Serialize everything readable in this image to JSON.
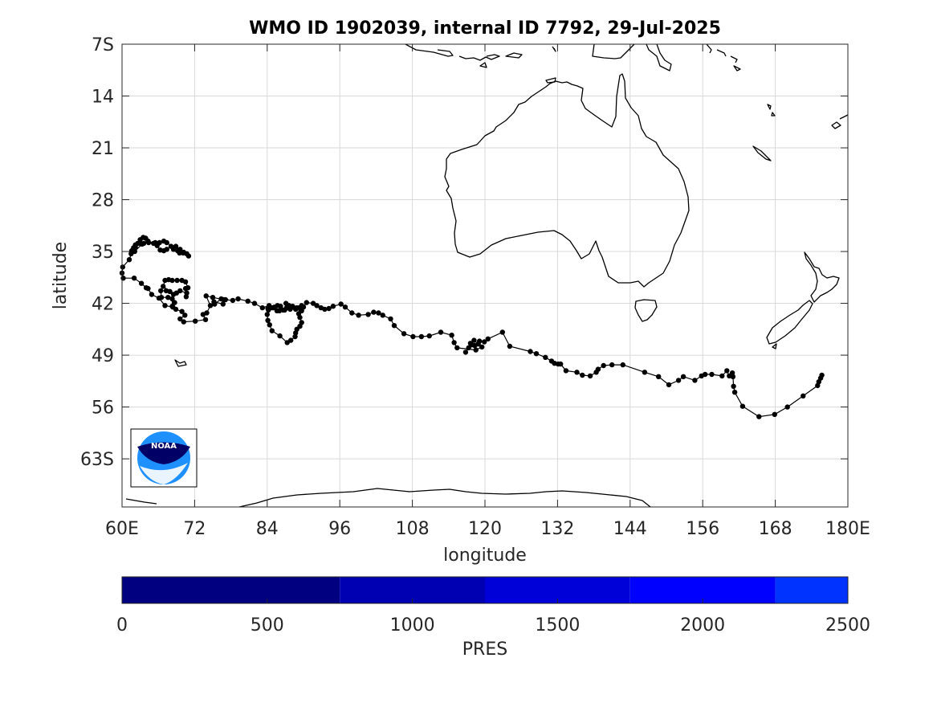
{
  "chart_data": {
    "type": "scatter",
    "title": "WMO ID 1902039, internal ID 7792, 29-Jul-2025",
    "xlabel": "longitude",
    "ylabel": "latitude",
    "xlim": [
      60,
      180
    ],
    "ylim": [
      -69.5,
      -7
    ],
    "x_ticks": [
      60,
      72,
      84,
      96,
      108,
      120,
      132,
      144,
      156,
      168,
      180
    ],
    "x_tick_labels": [
      "60E",
      "72",
      "84",
      "96",
      "108",
      "120",
      "132",
      "144",
      "156",
      "168",
      "180E"
    ],
    "y_ticks": [
      -7,
      -14,
      -21,
      -28,
      -35,
      -42,
      -49,
      -56,
      -63
    ],
    "y_tick_labels": [
      "7S",
      "14",
      "21",
      "28",
      "35",
      "42",
      "49",
      "56",
      "63S"
    ],
    "grid": true,
    "marker_color": "#000000",
    "series": [
      {
        "points": [
          [
            175.7,
            -51.7
          ],
          [
            175.5,
            -52.1
          ],
          [
            175.2,
            -52.6
          ],
          [
            175.0,
            -53.1
          ],
          [
            172.6,
            -54.5
          ],
          [
            170.0,
            -56.0
          ],
          [
            167.9,
            -57.0
          ],
          [
            165.3,
            -57.3
          ],
          [
            162.6,
            -55.9
          ],
          [
            161.3,
            -54.0
          ],
          [
            161.1,
            -53.2
          ],
          [
            161.0,
            -51.9
          ],
          [
            160.9,
            -51.4
          ],
          [
            160.4,
            -51.8
          ],
          [
            160.0,
            -51.1
          ],
          [
            159.2,
            -51.8
          ],
          [
            157.5,
            -51.6
          ],
          [
            156.4,
            -51.6
          ],
          [
            155.8,
            -51.8
          ],
          [
            154.7,
            -52.4
          ],
          [
            152.8,
            -51.9
          ],
          [
            152.0,
            -52.4
          ],
          [
            150.4,
            -53.0
          ],
          [
            148.7,
            -51.9
          ],
          [
            146.4,
            -51.3
          ],
          [
            142.8,
            -50.3
          ],
          [
            141.0,
            -50.3
          ],
          [
            139.6,
            -50.4
          ],
          [
            138.7,
            -50.9
          ],
          [
            138.4,
            -51.3
          ],
          [
            137.4,
            -51.8
          ],
          [
            136.1,
            -51.7
          ],
          [
            135.2,
            -51.3
          ],
          [
            133.4,
            -51.1
          ],
          [
            132.5,
            -50.2
          ],
          [
            132.1,
            -50.2
          ],
          [
            131.5,
            -50.1
          ],
          [
            131.0,
            -49.8
          ],
          [
            130.0,
            -49.3
          ],
          [
            128.5,
            -48.8
          ],
          [
            127.5,
            -48.5
          ],
          [
            124.1,
            -47.8
          ],
          [
            122.9,
            -45.9
          ],
          [
            120.5,
            -46.8
          ],
          [
            119.9,
            -47.2
          ],
          [
            119.1,
            -47.1
          ],
          [
            118.3,
            -47.7
          ],
          [
            117.8,
            -47.6
          ],
          [
            117.3,
            -48.0
          ],
          [
            116.8,
            -48.6
          ],
          [
            117.6,
            -47.4
          ],
          [
            118.2,
            -47.0
          ],
          [
            118.9,
            -47.5
          ],
          [
            119.5,
            -47.9
          ],
          [
            118.5,
            -48.3
          ],
          [
            115.4,
            -48.0
          ],
          [
            114.9,
            -47.3
          ],
          [
            114.5,
            -46.3
          ],
          [
            112.7,
            -45.9
          ],
          [
            110.8,
            -46.4
          ],
          [
            109.5,
            -46.5
          ],
          [
            108.1,
            -46.5
          ],
          [
            106.6,
            -46.1
          ],
          [
            105.0,
            -45.0
          ],
          [
            104.4,
            -44.1
          ],
          [
            103.1,
            -43.6
          ],
          [
            102.4,
            -43.3
          ],
          [
            101.6,
            -43.2
          ],
          [
            100.7,
            -43.5
          ],
          [
            99.1,
            -43.6
          ],
          [
            98.0,
            -43.3
          ],
          [
            96.9,
            -42.5
          ],
          [
            96.2,
            -42.1
          ],
          [
            94.9,
            -42.4
          ],
          [
            94.2,
            -42.7
          ],
          [
            93.5,
            -42.8
          ],
          [
            92.9,
            -42.6
          ],
          [
            92.2,
            -42.3
          ],
          [
            91.6,
            -42.0
          ],
          [
            90.5,
            -41.9
          ],
          [
            90.0,
            -42.5
          ],
          [
            89.5,
            -42.8
          ],
          [
            88.7,
            -42.8
          ],
          [
            87.8,
            -42.8
          ],
          [
            87.2,
            -42.6
          ],
          [
            87.1,
            -42.0
          ],
          [
            87.4,
            -42.6
          ],
          [
            86.6,
            -42.9
          ],
          [
            86.0,
            -43.0
          ],
          [
            85.6,
            -43.0
          ],
          [
            85.2,
            -42.5
          ],
          [
            84.7,
            -42.6
          ],
          [
            84.1,
            -42.7
          ],
          [
            84.3,
            -42.3
          ],
          [
            83.2,
            -42.6
          ],
          [
            81.9,
            -42.0
          ],
          [
            80.8,
            -41.7
          ],
          [
            79.2,
            -41.4
          ],
          [
            78.3,
            -41.6
          ],
          [
            77.1,
            -41.5
          ],
          [
            76.7,
            -42.1
          ],
          [
            75.2,
            -41.8
          ],
          [
            75.3,
            -42.1
          ],
          [
            76.4,
            -41.4
          ],
          [
            76.8,
            -41.5
          ],
          [
            75.0,
            -41.2
          ],
          [
            73.9,
            -41.0
          ],
          [
            74.6,
            -42.3
          ],
          [
            74.0,
            -43.3
          ],
          [
            73.4,
            -43.5
          ],
          [
            73.8,
            -44.2
          ],
          [
            72.1,
            -44.4
          ],
          [
            70.2,
            -44.5
          ],
          [
            69.6,
            -44.1
          ],
          [
            70.4,
            -43.6
          ],
          [
            69.9,
            -43.1
          ],
          [
            68.9,
            -42.8
          ],
          [
            68.3,
            -42.4
          ],
          [
            68.3,
            -41.4
          ],
          [
            68.5,
            -40.8
          ],
          [
            69.0,
            -40.6
          ],
          [
            69.6,
            -40.3
          ],
          [
            70.7,
            -40.6
          ],
          [
            70.6,
            -41.1
          ],
          [
            70.5,
            -40.0
          ],
          [
            70.9,
            -39.9
          ],
          [
            70.5,
            -39.1
          ],
          [
            69.9,
            -38.9
          ],
          [
            69.1,
            -38.9
          ],
          [
            68.3,
            -38.9
          ],
          [
            67.7,
            -38.8
          ],
          [
            67.1,
            -38.9
          ],
          [
            66.8,
            -39.7
          ],
          [
            67.9,
            -40.4
          ],
          [
            67.3,
            -40.3
          ],
          [
            66.4,
            -40.3
          ],
          [
            66.5,
            -41.2
          ],
          [
            67.6,
            -41.2
          ],
          [
            68.7,
            -41.9
          ],
          [
            68.4,
            -42.5
          ],
          [
            67.1,
            -42.3
          ],
          [
            66.1,
            -41.3
          ],
          [
            64.9,
            -40.8
          ],
          [
            64.3,
            -40.0
          ],
          [
            64.0,
            -39.9
          ],
          [
            63.2,
            -39.3
          ],
          [
            62.0,
            -38.6
          ],
          [
            60.2,
            -38.6
          ],
          [
            60.0,
            -37.9
          ],
          [
            60.1,
            -37.1
          ],
          [
            61.2,
            -36.1
          ],
          [
            61.6,
            -35.1
          ],
          [
            61.9,
            -34.5
          ],
          [
            62.2,
            -34.1
          ],
          [
            63.0,
            -33.9
          ],
          [
            63.6,
            -33.9
          ],
          [
            64.4,
            -33.8
          ],
          [
            65.5,
            -33.8
          ],
          [
            66.2,
            -33.8
          ],
          [
            66.9,
            -33.6
          ],
          [
            67.4,
            -33.8
          ],
          [
            68.6,
            -34.5
          ],
          [
            68.9,
            -34.7
          ],
          [
            69.2,
            -34.9
          ],
          [
            69.5,
            -35.2
          ],
          [
            70.1,
            -35.2
          ],
          [
            70.7,
            -35.3
          ],
          [
            71.0,
            -35.6
          ],
          [
            70.2,
            -35.1
          ],
          [
            69.6,
            -34.7
          ],
          [
            68.9,
            -34.3
          ],
          [
            68.5,
            -34.7
          ],
          [
            68.1,
            -34.3
          ],
          [
            67.4,
            -34.7
          ],
          [
            66.9,
            -34.9
          ],
          [
            66.3,
            -34.8
          ],
          [
            65.8,
            -34.2
          ],
          [
            65.2,
            -33.9
          ],
          [
            64.3,
            -33.6
          ],
          [
            63.9,
            -33.2
          ],
          [
            63.5,
            -33.1
          ],
          [
            63.0,
            -33.4
          ],
          [
            62.6,
            -33.9
          ],
          [
            62.2,
            -34.4
          ],
          [
            61.6,
            -34.9
          ],
          [
            61.5,
            -35.3
          ],
          [
            62.1,
            -35.0
          ],
          [
            63.3,
            -34.0
          ]
        ]
      },
      {
        "points": [
          [
            84.1,
            -44.3
          ],
          [
            84.0,
            -43.5
          ],
          [
            84.2,
            -42.9
          ],
          [
            85.0,
            -42.6
          ],
          [
            85.7,
            -42.3
          ],
          [
            86.2,
            -42.4
          ],
          [
            86.9,
            -42.9
          ],
          [
            87.6,
            -42.3
          ],
          [
            88.2,
            -42.4
          ],
          [
            88.9,
            -42.6
          ],
          [
            89.3,
            -42.6
          ],
          [
            89.7,
            -42.3
          ],
          [
            89.7,
            -43.0
          ],
          [
            89.2,
            -43.4
          ],
          [
            89.4,
            -43.9
          ],
          [
            89.7,
            -44.6
          ],
          [
            89.4,
            -45.1
          ],
          [
            88.9,
            -45.5
          ],
          [
            88.7,
            -46.0
          ],
          [
            88.6,
            -46.5
          ],
          [
            87.9,
            -47.0
          ],
          [
            87.3,
            -47.3
          ],
          [
            86.1,
            -46.4
          ],
          [
            84.8,
            -45.7
          ],
          [
            84.4,
            -44.9
          ]
        ]
      }
    ],
    "colorbar": {
      "label": "PRES",
      "ticks": [
        0,
        500,
        1000,
        1500,
        2000,
        2500
      ],
      "bands": [
        {
          "from": 0,
          "to": 750,
          "color": "#000080"
        },
        {
          "from": 750,
          "to": 1250,
          "color": "#0000b3"
        },
        {
          "from": 1250,
          "to": 1750,
          "color": "#0000d9"
        },
        {
          "from": 1750,
          "to": 2250,
          "color": "#0000ff"
        },
        {
          "from": 2250,
          "to": 2500,
          "color": "#0033ff"
        }
      ]
    },
    "logo": {
      "text": "NOAA",
      "colors": [
        "#000066",
        "#1e90ff",
        "#ffffff"
      ]
    }
  }
}
